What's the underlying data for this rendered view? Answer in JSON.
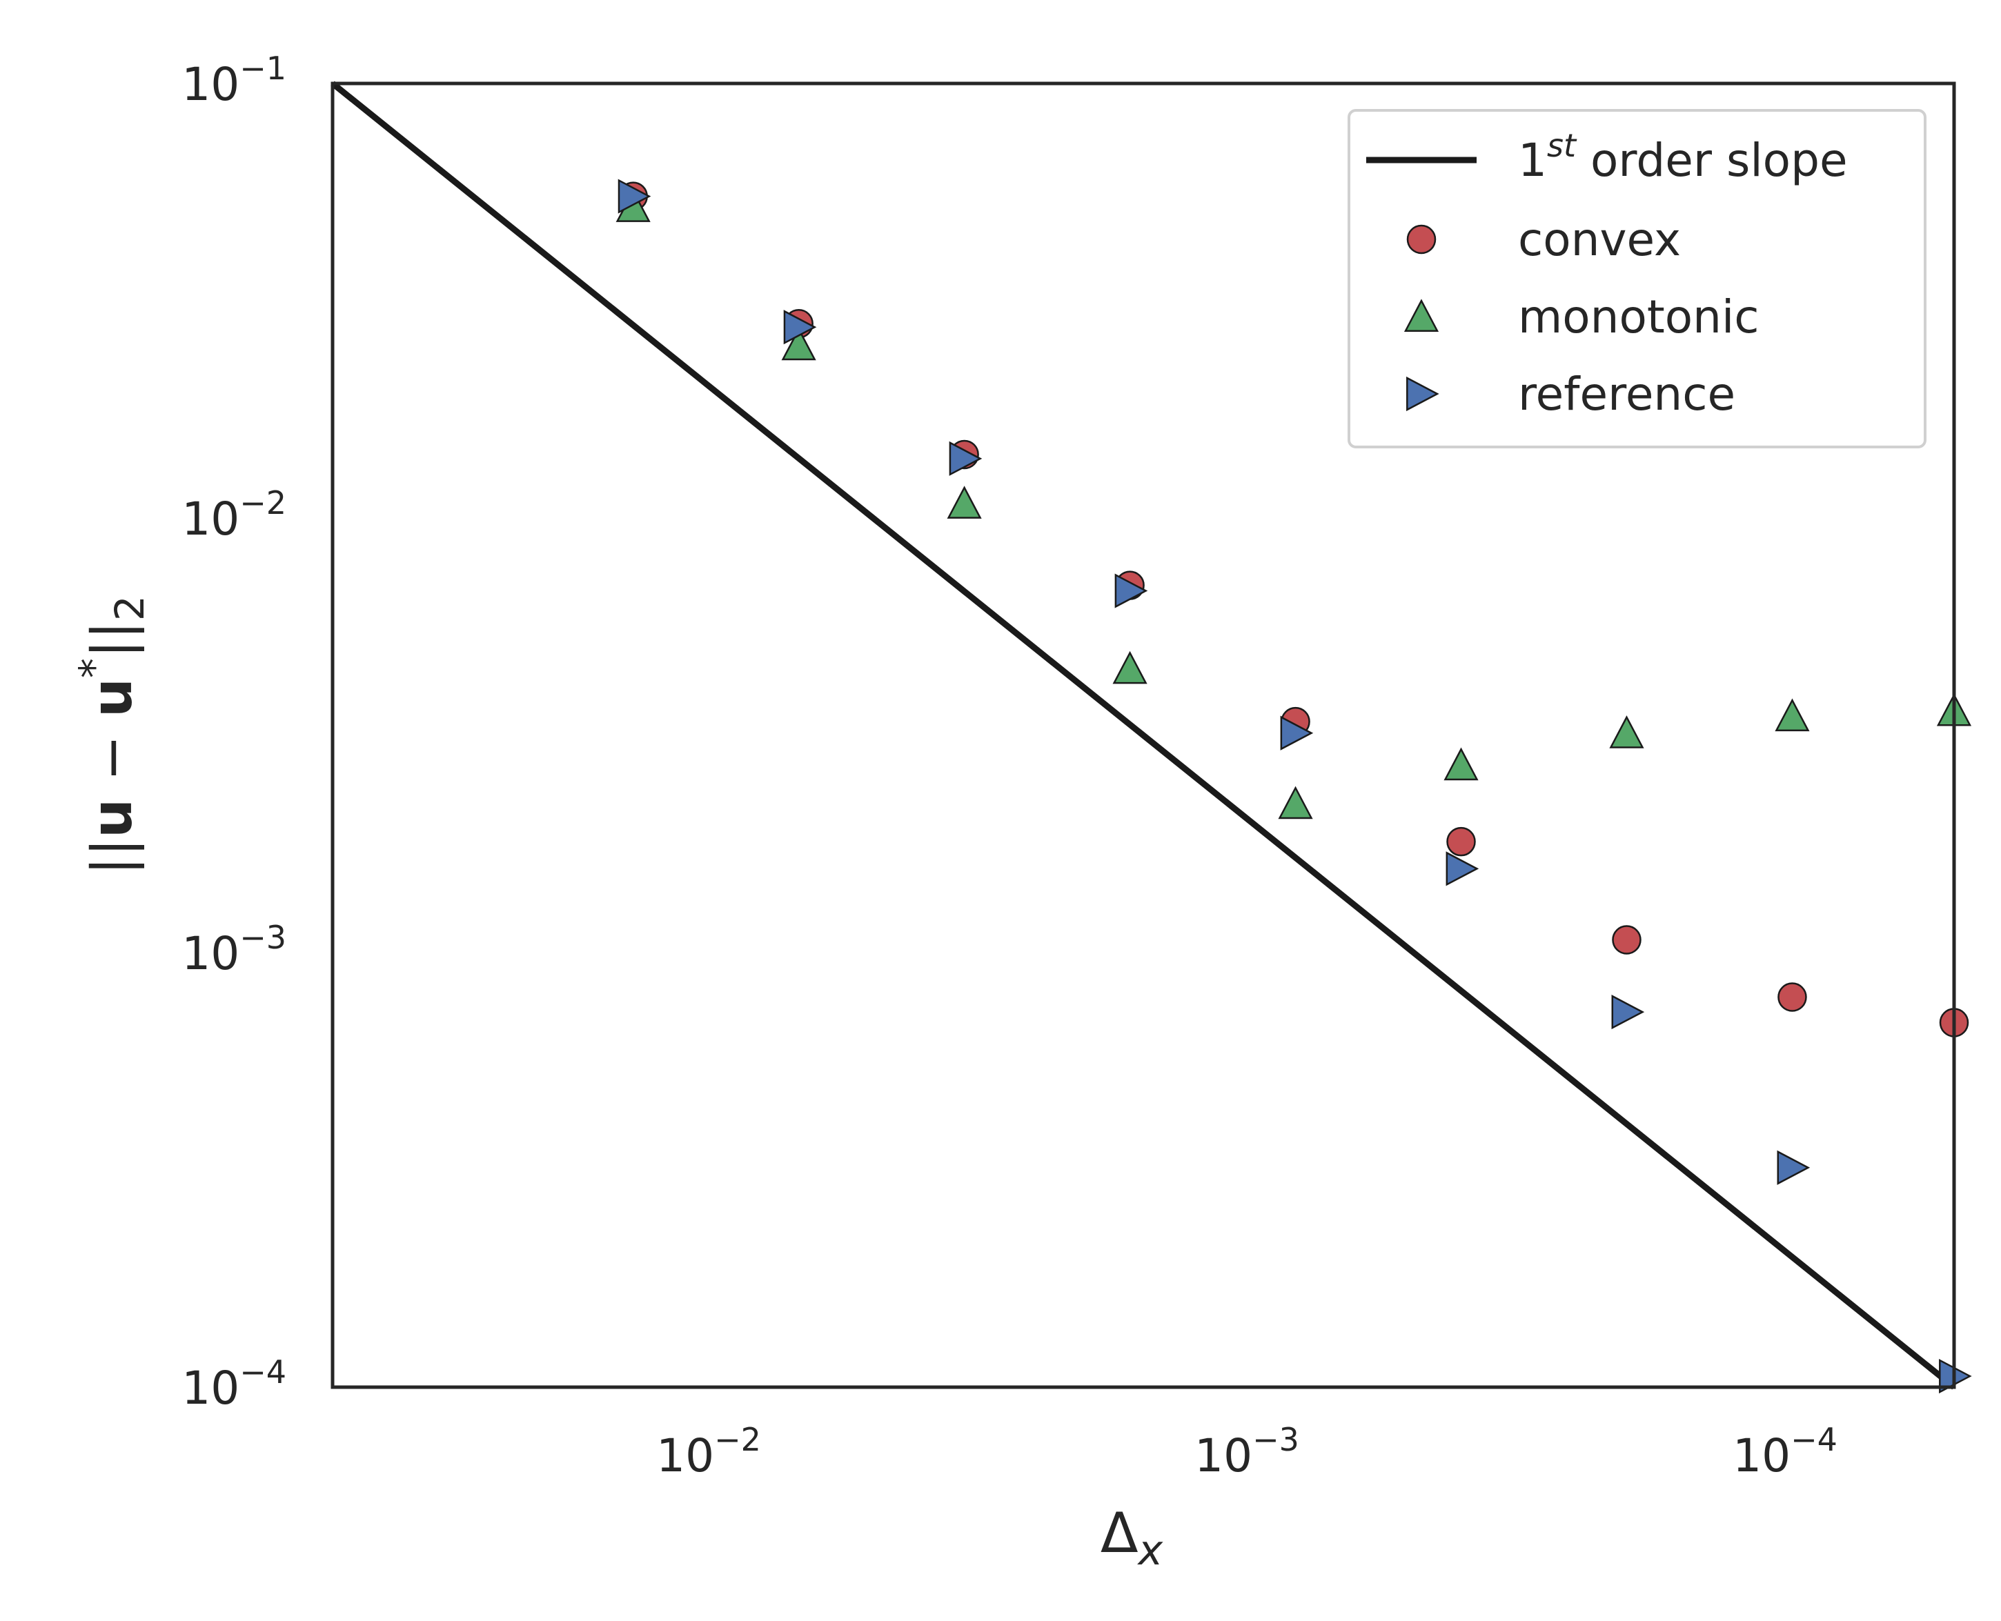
{
  "chart_data": {
    "type": "scatter",
    "x_scale": "log",
    "y_scale": "log",
    "x_reversed": true,
    "xlim": [
      0.044,
      4.96e-05
    ],
    "ylim": [
      0.0001,
      0.1
    ],
    "x_ticks": [
      {
        "value": 0.01,
        "base": "10",
        "exp": "−2"
      },
      {
        "value": 0.001,
        "base": "10",
        "exp": "−3"
      },
      {
        "value": 0.0001,
        "base": "10",
        "exp": "−4"
      }
    ],
    "y_ticks": [
      {
        "value": 0.1,
        "base": "10",
        "exp": "−1"
      },
      {
        "value": 0.01,
        "base": "10",
        "exp": "−2"
      },
      {
        "value": 0.001,
        "base": "10",
        "exp": "−3"
      },
      {
        "value": 0.0001,
        "base": "10",
        "exp": "−4"
      }
    ],
    "xlabel": {
      "main": "Δ",
      "sub": "x"
    },
    "ylabel": {
      "pre": "||",
      "bold1": "u",
      "mid": " − ",
      "bold2": "u",
      "sup": "*",
      "post": "||",
      "sub": "2"
    },
    "legend": {
      "placement": "top-right",
      "entries": [
        {
          "key": "slope",
          "base": "1",
          "sup": "st",
          "rest": " order slope"
        },
        {
          "key": "convex",
          "label": "convex"
        },
        {
          "key": "monotonic",
          "label": "monotonic"
        },
        {
          "key": "reference",
          "label": "reference"
        }
      ]
    },
    "line": {
      "name": "1st order slope",
      "color": "#1a1a1a",
      "x": [
        0.044,
        4.96e-05
      ],
      "y": [
        0.1,
        0.0001
      ]
    },
    "series": [
      {
        "key": "convex",
        "marker": "circle",
        "color": "#c44e52",
        "x": [
          0.0125,
          0.00625,
          0.003125,
          0.0015625,
          0.00078125,
          0.000390625,
          0.0001953125,
          9.765625e-05,
          4.96e-05
        ],
        "y": [
          0.055,
          0.028,
          0.014,
          0.007,
          0.0034,
          0.0018,
          0.00107,
          0.00079,
          0.00069
        ]
      },
      {
        "key": "monotonic",
        "marker": "triangle-up",
        "color": "#55a868",
        "x": [
          0.0125,
          0.00625,
          0.003125,
          0.0015625,
          0.00078125,
          0.000390625,
          0.0001953125,
          9.765625e-05,
          4.96e-05
        ],
        "y": [
          0.052,
          0.025,
          0.0108,
          0.0045,
          0.0022,
          0.0027,
          0.0032,
          0.0035,
          0.0036
        ]
      },
      {
        "key": "reference",
        "marker": "triangle-right",
        "color": "#4c72b0",
        "x": [
          0.0125,
          0.00625,
          0.003125,
          0.0015625,
          0.00078125,
          0.000390625,
          0.0001953125,
          9.765625e-05,
          4.96e-05
        ],
        "y": [
          0.055,
          0.0275,
          0.0137,
          0.0068,
          0.0032,
          0.00156,
          0.00073,
          0.00032,
          0.000106
        ]
      }
    ]
  }
}
